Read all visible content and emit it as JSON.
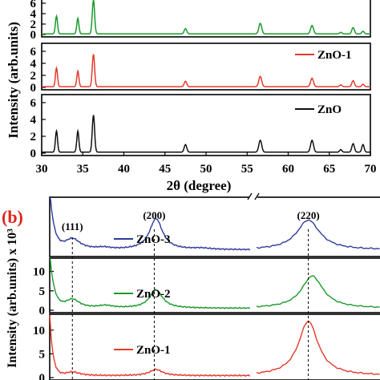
{
  "panel_b_label": "(b)",
  "colors": {
    "ZnO": "#111111",
    "ZnO-1": "#e33b2c",
    "ZnO-2": "#1b9a2c",
    "ZnO-3": "#2f3a9c",
    "panel_label": "#e0241b"
  },
  "chart_data": [
    {
      "type": "line",
      "xlabel": "2θ (degree)",
      "ylabel": "Intensity (arb.units)",
      "xlim": [
        30,
        70
      ],
      "x_ticks": [
        "30",
        "35",
        "40",
        "45",
        "50",
        "55",
        "60",
        "65",
        "70"
      ],
      "x_tick_values": [
        30,
        35,
        40,
        45,
        50,
        55,
        60,
        65,
        70
      ],
      "subplots": [
        {
          "ylim": [
            0,
            6
          ],
          "y_ticks": [
            "0",
            "2",
            "4",
            "6"
          ],
          "y_tick_values": [
            0,
            2,
            4,
            6
          ],
          "legend": "",
          "series": {
            "color": "#1b9a2c",
            "peaks": [
              [
                31.8,
                3.4,
                0.18
              ],
              [
                34.4,
                3.0,
                0.18
              ],
              [
                36.3,
                6.5,
                0.2
              ],
              [
                47.5,
                1.0,
                0.22
              ],
              [
                56.6,
                2.0,
                0.25
              ],
              [
                62.9,
                1.6,
                0.25
              ],
              [
                66.4,
                0.3,
                0.2
              ],
              [
                67.9,
                1.2,
                0.22
              ],
              [
                69.1,
                0.5,
                0.2
              ]
            ]
          }
        },
        {
          "ylim": [
            0,
            6
          ],
          "y_ticks": [
            "0",
            "2",
            "4",
            "6"
          ],
          "y_tick_values": [
            0,
            2,
            4,
            6
          ],
          "legend": "ZnO-1",
          "series": {
            "color": "#e33b2c",
            "peaks": [
              [
                31.8,
                3.1,
                0.18
              ],
              [
                34.4,
                2.6,
                0.18
              ],
              [
                36.3,
                5.4,
                0.2
              ],
              [
                47.5,
                0.9,
                0.22
              ],
              [
                56.6,
                1.7,
                0.25
              ],
              [
                62.9,
                1.4,
                0.25
              ],
              [
                66.4,
                0.3,
                0.2
              ],
              [
                67.9,
                1.0,
                0.22
              ],
              [
                69.1,
                0.4,
                0.2
              ]
            ]
          }
        },
        {
          "ylim": [
            0,
            6
          ],
          "y_ticks": [
            "0",
            "2",
            "4",
            "6"
          ],
          "y_tick_values": [
            0,
            2,
            4,
            6
          ],
          "legend": "ZnO",
          "series": {
            "color": "#111111",
            "peaks": [
              [
                31.8,
                2.5,
                0.18
              ],
              [
                34.4,
                2.5,
                0.18
              ],
              [
                36.3,
                4.4,
                0.2
              ],
              [
                47.5,
                0.9,
                0.22
              ],
              [
                56.6,
                1.4,
                0.25
              ],
              [
                62.9,
                1.4,
                0.25
              ],
              [
                66.4,
                0.3,
                0.2
              ],
              [
                67.9,
                1.0,
                0.22
              ],
              [
                69.1,
                0.9,
                0.2
              ]
            ]
          }
        }
      ]
    },
    {
      "type": "line",
      "ylabel": "Intensity (arb.units) x 10³",
      "peak_labels": [
        "(111)",
        "(200)",
        "(220)"
      ],
      "peak_positions": [
        31.8,
        36.5,
        47.8
      ],
      "x_break_after": 42,
      "segments": [
        [
          30.5,
          42
        ],
        [
          46.5,
          49.6
        ]
      ],
      "subplots": [
        {
          "ylim": [
            0,
            13
          ],
          "y_ticks": [],
          "y_tick_values": [],
          "legend": "ZnO-3",
          "series": {
            "color": "#2f3a9c",
            "baseline": 1.0,
            "peaks": [
              [
                31.8,
                2.6,
                0.55
              ],
              [
                36.6,
                7.3,
                0.45
              ],
              [
                47.8,
                7.0,
                0.35
              ],
              [
                33.6,
                0.4,
                0.5
              ],
              [
                39.2,
                0.3,
                0.6
              ]
            ],
            "decay": [
              30.5,
              14.0,
              0.25
            ]
          }
        },
        {
          "ylim": [
            0,
            13
          ],
          "y_ticks": [
            "0",
            "5",
            "10"
          ],
          "y_tick_values": [
            0,
            5,
            10
          ],
          "legend": "ZnO-2",
          "series": {
            "color": "#1b9a2c",
            "baseline": 0.5,
            "peaks": [
              [
                31.8,
                2.3,
                0.5
              ],
              [
                36.6,
                4.7,
                0.45
              ],
              [
                47.9,
                8.3,
                0.33
              ],
              [
                33.7,
                0.6,
                0.5
              ]
            ],
            "decay": [
              30.5,
              14.0,
              0.25
            ]
          }
        },
        {
          "ylim": [
            0,
            13
          ],
          "y_ticks": [
            "0",
            "5",
            "10"
          ],
          "y_tick_values": [
            0,
            5,
            10
          ],
          "legend": "ZnO-1",
          "series": {
            "color": "#e33b2c",
            "baseline": 0.4,
            "peaks": [
              [
                31.8,
                0.8,
                0.5
              ],
              [
                36.6,
                1.3,
                0.45
              ],
              [
                47.8,
                11.5,
                0.3
              ]
            ],
            "decay": [
              30.5,
              13.0,
              0.18
            ]
          }
        }
      ]
    }
  ]
}
